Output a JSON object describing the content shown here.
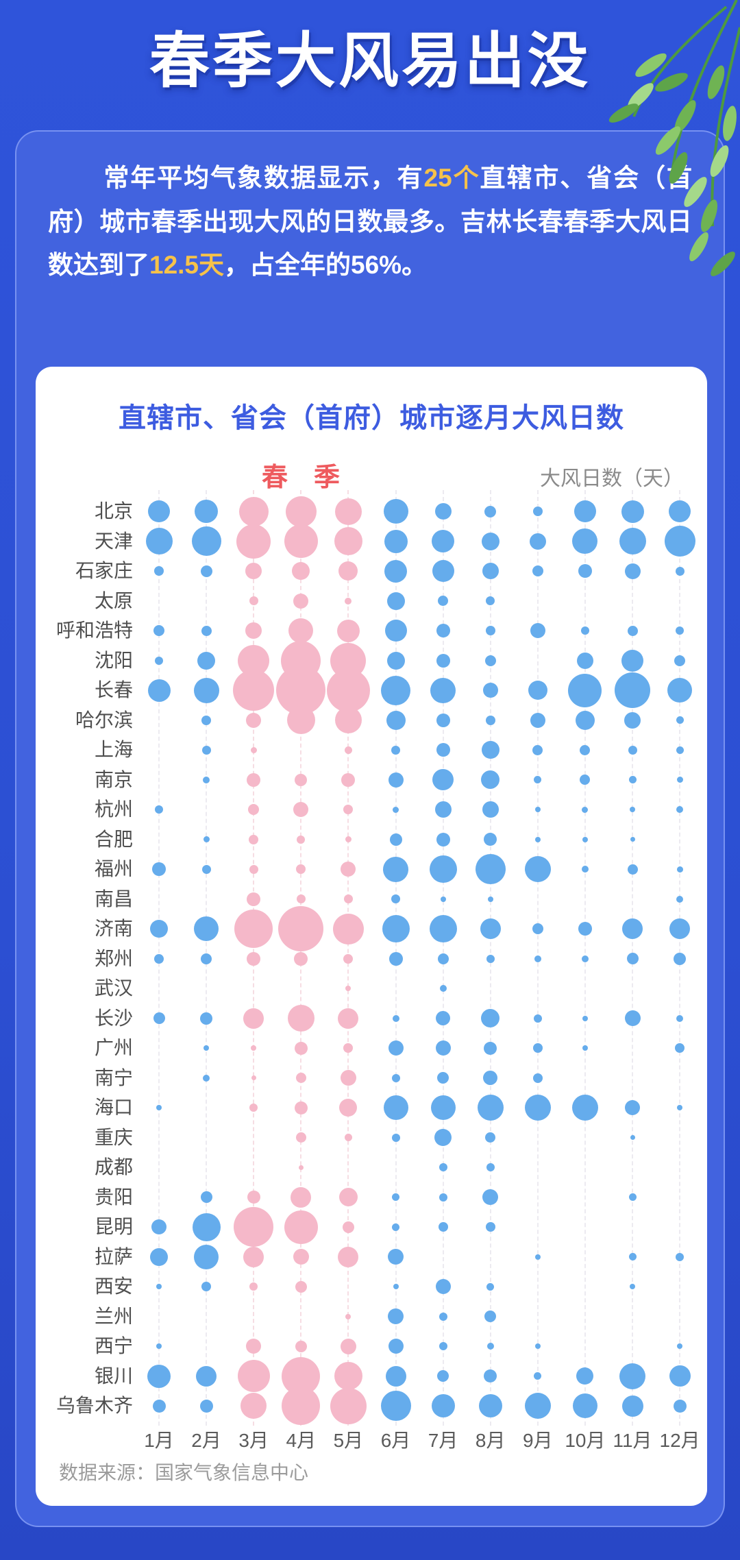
{
  "page": {
    "title": "春季大风易出没",
    "footer": "数据来源：国家气象信息中心"
  },
  "intro": {
    "segments": [
      {
        "text": "常年平均气象数据显示，有",
        "highlight": false
      },
      {
        "text": "25个",
        "highlight": true
      },
      {
        "text": "直辖市、省会（首府）城市春季出现大风的日数最多。吉林长春春季大风日数达到了",
        "highlight": false
      },
      {
        "text": "12.5天",
        "highlight": true
      },
      {
        "text": "，占全年的56%。",
        "highlight": false
      }
    ]
  },
  "chart": {
    "title": "直辖市、省会（首府）城市逐月大风日数",
    "season_label": "春　季",
    "unit_label": "大风日数（天）"
  },
  "colors": {
    "page_background": "#2E52D6",
    "card_background": "#4263DF",
    "highlight_yellow": "#F6C24A",
    "chart_title_blue": "#3D5CE0",
    "season_red": "#EE5A5E",
    "spring_bubble_pink": "#F5B8C9",
    "other_bubble_blue": "#65ACEC"
  },
  "chart_data": {
    "type": "scatter",
    "subtype": "bubble-matrix",
    "title": "直辖市、省会（首府）城市逐月大风日数",
    "xlabel": "月份",
    "ylabel": "城市",
    "size_legend": "大风日数（天）",
    "size_note": "bubble diameter in px, proportional to monthly days of strong wind; 0 = no bubble drawn",
    "legend_position": "top",
    "grid": "dashed vertical guides per month",
    "x_categories": [
      "1月",
      "2月",
      "3月",
      "4月",
      "5月",
      "6月",
      "7月",
      "8月",
      "9月",
      "10月",
      "11月",
      "12月"
    ],
    "spring_month_indexes": [
      2,
      3,
      4
    ],
    "series": [
      {
        "name": "北京",
        "sizes": [
          32,
          34,
          43,
          45,
          39,
          36,
          24,
          17,
          14,
          32,
          33,
          32
        ]
      },
      {
        "name": "天津",
        "sizes": [
          39,
          43,
          50,
          49,
          41,
          34,
          33,
          26,
          24,
          37,
          39,
          45
        ]
      },
      {
        "name": "石家庄",
        "sizes": [
          14,
          17,
          24,
          26,
          28,
          33,
          32,
          24,
          16,
          20,
          23,
          13
        ]
      },
      {
        "name": "太原",
        "sizes": [
          0,
          0,
          13,
          22,
          10,
          26,
          15,
          13,
          0,
          0,
          0,
          0
        ]
      },
      {
        "name": "呼和浩特",
        "sizes": [
          16,
          15,
          24,
          36,
          33,
          32,
          20,
          14,
          22,
          12,
          15,
          12
        ]
      },
      {
        "name": "沈阳",
        "sizes": [
          12,
          26,
          46,
          58,
          52,
          26,
          20,
          16,
          0,
          24,
          32,
          16
        ]
      },
      {
        "name": "长春",
        "sizes": [
          33,
          37,
          60,
          72,
          63,
          43,
          37,
          22,
          28,
          49,
          52,
          36
        ]
      },
      {
        "name": "哈尔滨",
        "sizes": [
          0,
          14,
          22,
          41,
          39,
          28,
          20,
          14,
          22,
          28,
          24,
          11
        ]
      },
      {
        "name": "上海",
        "sizes": [
          0,
          13,
          9,
          0,
          11,
          13,
          20,
          26,
          15,
          15,
          13,
          11
        ]
      },
      {
        "name": "南京",
        "sizes": [
          0,
          10,
          20,
          18,
          20,
          22,
          31,
          27,
          11,
          15,
          11,
          9
        ]
      },
      {
        "name": "杭州",
        "sizes": [
          12,
          0,
          16,
          22,
          14,
          9,
          24,
          24,
          8,
          9,
          8,
          10
        ]
      },
      {
        "name": "合肥",
        "sizes": [
          0,
          9,
          14,
          12,
          9,
          18,
          20,
          19,
          8,
          8,
          7,
          0
        ]
      },
      {
        "name": "福州",
        "sizes": [
          20,
          13,
          13,
          14,
          22,
          37,
          40,
          44,
          38,
          10,
          15,
          9
        ]
      },
      {
        "name": "南昌",
        "sizes": [
          0,
          0,
          20,
          13,
          13,
          13,
          8,
          8,
          0,
          0,
          0,
          10
        ]
      },
      {
        "name": "济南",
        "sizes": [
          26,
          36,
          56,
          66,
          45,
          40,
          40,
          30,
          16,
          20,
          30,
          30
        ]
      },
      {
        "name": "郑州",
        "sizes": [
          14,
          16,
          20,
          20,
          14,
          20,
          16,
          12,
          10,
          10,
          17,
          18
        ]
      },
      {
        "name": "武汉",
        "sizes": [
          0,
          0,
          0,
          0,
          8,
          0,
          10,
          0,
          0,
          0,
          0,
          0
        ]
      },
      {
        "name": "长沙",
        "sizes": [
          17,
          18,
          30,
          39,
          30,
          10,
          21,
          27,
          12,
          8,
          23,
          10
        ]
      },
      {
        "name": "广州",
        "sizes": [
          0,
          8,
          8,
          19,
          14,
          22,
          22,
          19,
          14,
          8,
          0,
          14
        ]
      },
      {
        "name": "南宁",
        "sizes": [
          0,
          10,
          7,
          15,
          23,
          12,
          17,
          21,
          14,
          0,
          0,
          0
        ]
      },
      {
        "name": "海口",
        "sizes": [
          8,
          0,
          12,
          19,
          26,
          36,
          36,
          38,
          38,
          38,
          22,
          8
        ]
      },
      {
        "name": "重庆",
        "sizes": [
          0,
          0,
          0,
          15,
          11,
          12,
          25,
          15,
          0,
          0,
          7,
          0
        ]
      },
      {
        "name": "成都",
        "sizes": [
          0,
          0,
          0,
          7,
          0,
          0,
          12,
          12,
          0,
          0,
          0,
          0
        ]
      },
      {
        "name": "贵阳",
        "sizes": [
          0,
          17,
          19,
          30,
          27,
          11,
          12,
          23,
          0,
          0,
          11,
          0
        ]
      },
      {
        "name": "昆明",
        "sizes": [
          22,
          41,
          58,
          49,
          17,
          11,
          14,
          14,
          0,
          0,
          0,
          0
        ]
      },
      {
        "name": "拉萨",
        "sizes": [
          26,
          36,
          30,
          23,
          30,
          23,
          0,
          0,
          8,
          0,
          11,
          12
        ]
      },
      {
        "name": "西安",
        "sizes": [
          8,
          14,
          12,
          17,
          0,
          8,
          22,
          11,
          0,
          0,
          8,
          0
        ]
      },
      {
        "name": "兰州",
        "sizes": [
          0,
          0,
          0,
          0,
          8,
          23,
          12,
          17,
          0,
          0,
          0,
          0
        ]
      },
      {
        "name": "西宁",
        "sizes": [
          8,
          0,
          22,
          17,
          23,
          22,
          12,
          10,
          8,
          0,
          0,
          8
        ]
      },
      {
        "name": "银川",
        "sizes": [
          34,
          30,
          47,
          56,
          41,
          30,
          17,
          19,
          11,
          25,
          38,
          31
        ]
      },
      {
        "name": "乌鲁木齐",
        "sizes": [
          19,
          19,
          38,
          56,
          53,
          44,
          34,
          34,
          38,
          36,
          31,
          19
        ]
      }
    ]
  }
}
